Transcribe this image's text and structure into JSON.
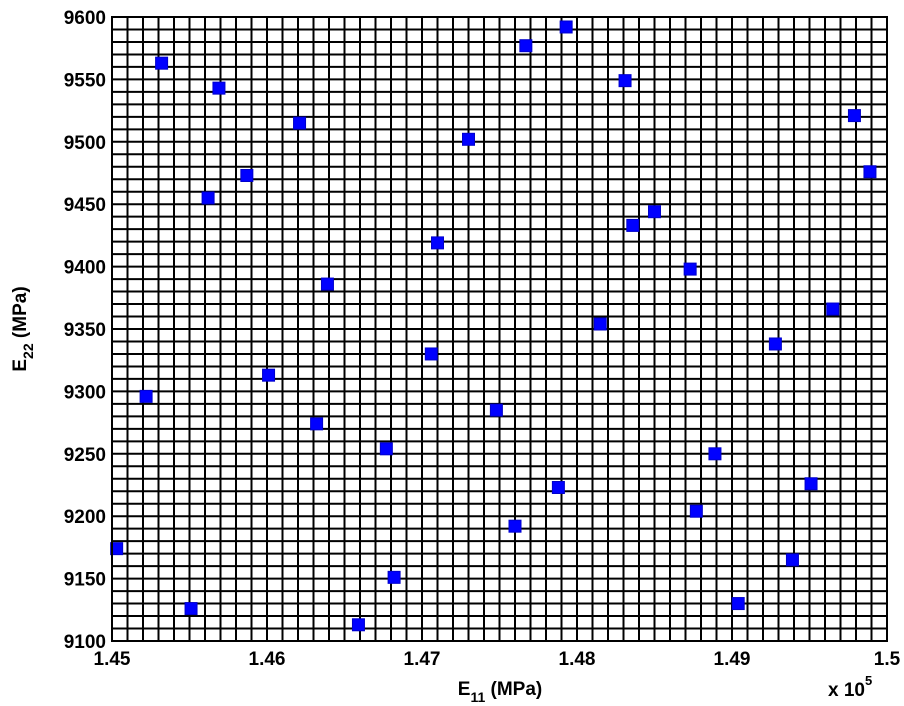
{
  "chart_data": {
    "type": "scatter",
    "xlabel": {
      "base": "E",
      "sub": "11",
      "rest": " (MPa)"
    },
    "ylabel": {
      "base": "E",
      "sub": "22",
      "rest": " (MPa)"
    },
    "x_multiplier": {
      "prefix": "x 10",
      "exponent": "5"
    },
    "xlim": [
      1.45,
      1.5
    ],
    "ylim": [
      9100,
      9600
    ],
    "x_ticks": [
      "1.45",
      "1.46",
      "1.47",
      "1.48",
      "1.49",
      "1.5"
    ],
    "y_ticks": [
      "9100",
      "9150",
      "9200",
      "9250",
      "9300",
      "9350",
      "9400",
      "9450",
      "9500",
      "9550",
      "9600"
    ],
    "grid": true,
    "marker_color": "#0000ff",
    "marker_shape": "square",
    "points": [
      [
        1.4503,
        9174
      ],
      [
        1.4522,
        9296
      ],
      [
        1.4532,
        9563
      ],
      [
        1.4551,
        9126
      ],
      [
        1.4562,
        9455
      ],
      [
        1.4569,
        9543
      ],
      [
        1.4587,
        9473
      ],
      [
        1.4601,
        9313
      ],
      [
        1.4621,
        9515
      ],
      [
        1.4632,
        9274
      ],
      [
        1.4639,
        9386
      ],
      [
        1.4659,
        9113
      ],
      [
        1.4677,
        9254
      ],
      [
        1.4682,
        9151
      ],
      [
        1.4706,
        9330
      ],
      [
        1.471,
        9419
      ],
      [
        1.473,
        9502
      ],
      [
        1.4748,
        9285
      ],
      [
        1.476,
        9192
      ],
      [
        1.4767,
        9577
      ],
      [
        1.4788,
        9223
      ],
      [
        1.4793,
        9592
      ],
      [
        1.4815,
        9354
      ],
      [
        1.4831,
        9549
      ],
      [
        1.4836,
        9433
      ],
      [
        1.485,
        9444
      ],
      [
        1.4873,
        9398
      ],
      [
        1.4877,
        9204
      ],
      [
        1.4889,
        9250
      ],
      [
        1.4904,
        9130
      ],
      [
        1.4928,
        9338
      ],
      [
        1.4939,
        9165
      ],
      [
        1.4951,
        9226
      ],
      [
        1.4965,
        9366
      ],
      [
        1.4979,
        9521
      ],
      [
        1.4989,
        9476
      ]
    ]
  }
}
